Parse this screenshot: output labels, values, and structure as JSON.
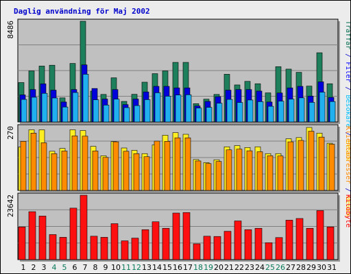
{
  "chart_data": {
    "type": "bar",
    "title": "Daglig användning för Maj 2002",
    "categories": [
      "1",
      "2",
      "3",
      "4",
      "5",
      "6",
      "7",
      "8",
      "9",
      "10",
      "11",
      "12",
      "13",
      "14",
      "15",
      "16",
      "17",
      "18",
      "19",
      "20",
      "21",
      "22",
      "23",
      "24",
      "25",
      "26",
      "27",
      "28",
      "29",
      "30",
      "31"
    ],
    "weekend_days": [
      "4",
      "5",
      "11",
      "12",
      "18",
      "19",
      "25",
      "26"
    ],
    "panels": [
      {
        "max_label": "8486",
        "scale_max": 8486,
        "right_label_parts": [
          {
            "text": "Träffar",
            "color": "#006c4b"
          },
          {
            "text": " / ",
            "color": "#0000cc"
          },
          {
            "text": "Filer",
            "color": "#0000ff"
          },
          {
            "text": " / ",
            "color": "#0000cc"
          },
          {
            "text": "Besökare",
            "color": "#00c0ff"
          },
          {
            "text": " / ",
            "color": "#0000cc"
          },
          {
            "text": "Besök",
            "color": "#ffd700"
          }
        ],
        "series": [
          {
            "name": "Träffar",
            "color": "#1e7f5c",
            "values": [
              3320,
              4300,
              4710,
              4780,
              2030,
              4930,
              8486,
              2600,
              2320,
              3720,
              1730,
              2330,
              3350,
              4070,
              4300,
              5020,
              5020,
              1540,
              1920,
              2320,
              4020,
              3120,
              3420,
              3220,
              2450,
              4660,
              4450,
              4180,
              3020,
              5830,
              3220
            ]
          },
          {
            "name": "Filer",
            "color": "#0000dd",
            "values": [
              2280,
              2730,
              3210,
              2680,
              1680,
              2730,
              4810,
              2820,
              1930,
              2730,
              1460,
              1930,
              2530,
              3000,
              3000,
              2870,
              2870,
              1350,
              1730,
              2130,
              2680,
              2730,
              2730,
              2600,
              1680,
              2440,
              2870,
              3000,
              2180,
              3380,
              2070
            ]
          },
          {
            "name": "Besökare",
            "color": "#20b0f0",
            "values": [
              1900,
              2080,
              2410,
              2020,
              1260,
              2480,
              4020,
              1870,
              1420,
              1920,
              1210,
              1380,
              1880,
              2460,
              2170,
              2270,
              2290,
              1170,
              1230,
              1580,
              1900,
              1640,
              1850,
              1710,
              1320,
              1750,
              1920,
              2030,
              1650,
              2510,
              1720
            ]
          }
        ]
      },
      {
        "max_label": "270",
        "scale_max": 270,
        "right_label_parts": [
          {
            "text": "Klientadresser",
            "color": "#ff8800"
          },
          {
            "text": " / ",
            "color": "#0000cc"
          },
          {
            "text": "Besök",
            "color": "#ffd700"
          }
        ],
        "series": [
          {
            "name": "Besök",
            "color": "#ffee22",
            "values": [
              184,
              257,
              257,
              166,
              178,
              257,
              254,
              187,
              147,
              207,
              180,
              170,
              156,
              193,
              234,
              245,
              238,
              131,
              118,
              130,
              185,
              190,
              182,
              185,
              156,
              156,
              219,
              224,
              267,
              243,
              200
            ]
          },
          {
            "name": "Klientadresser",
            "color": "#ff8c00",
            "values": [
              208,
              243,
              202,
              156,
              167,
              231,
              230,
              167,
              140,
              206,
              166,
              156,
              143,
              209,
              208,
              223,
              223,
              125,
              114,
              123,
              172,
              175,
              168,
              164,
              147,
              146,
              206,
              212,
              251,
              226,
              196
            ]
          }
        ]
      },
      {
        "max_label": "23642",
        "scale_max": 23642,
        "right_label_parts": [
          {
            "text": "Kilobyte",
            "color": "#ff0000"
          }
        ],
        "series": [
          {
            "name": "Kilobyte",
            "color": "#ff1010",
            "values": [
              12000,
              17600,
              16000,
              9200,
              8200,
              18900,
              23642,
              8600,
              8200,
              13200,
              6900,
              7900,
              11000,
              13900,
              11500,
              17100,
              17300,
              5800,
              8600,
              8500,
              10400,
              14200,
              11000,
              11500,
              6200,
              8100,
              14500,
              15100,
              11500,
              18000,
              12000
            ]
          }
        ]
      }
    ]
  }
}
